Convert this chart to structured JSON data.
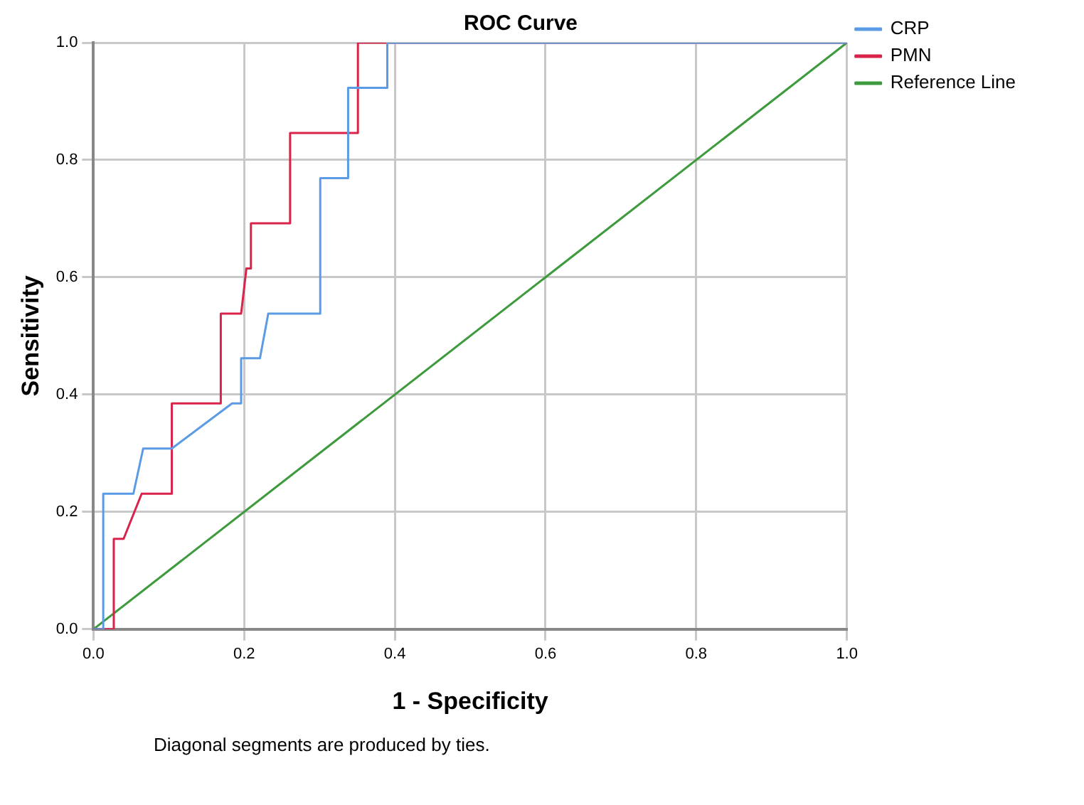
{
  "chart_data": {
    "type": "line",
    "title": "ROC Curve",
    "xlabel": "1 - Specificity",
    "ylabel": "Sensitivity",
    "annotations": [
      "Diagonal segments are produced by ties."
    ],
    "xlim": [
      0,
      1
    ],
    "ylim": [
      0,
      1
    ],
    "xticks": [
      {
        "value": 0,
        "label": "0.0"
      },
      {
        "value": 0.2,
        "label": "0.2"
      },
      {
        "value": 0.4,
        "label": "0.4"
      },
      {
        "value": 0.6,
        "label": "0.6"
      },
      {
        "value": 0.8,
        "label": "0.8"
      },
      {
        "value": 1,
        "label": "1.0"
      }
    ],
    "yticks": [
      {
        "value": 0,
        "label": "0.0"
      },
      {
        "value": 0.2,
        "label": "0.2"
      },
      {
        "value": 0.4,
        "label": "0.4"
      },
      {
        "value": 0.6,
        "label": "0.6"
      },
      {
        "value": 0.8,
        "label": "0.8"
      },
      {
        "value": 1,
        "label": "1.0"
      }
    ],
    "grid": true,
    "legend": "top right",
    "marker": "none",
    "line_style": "solid",
    "series": [
      {
        "name": "CRP",
        "color": "#5b9be6",
        "x": [
          0,
          0.013,
          0.013,
          0.053,
          0.066,
          0.104,
          0.184,
          0.196,
          0.196,
          0.221,
          0.232,
          0.301,
          0.301,
          0.338,
          0.338,
          0.39,
          0.39,
          1
        ],
        "values": [
          0,
          0,
          0.231,
          0.231,
          0.308,
          0.308,
          0.385,
          0.385,
          0.462,
          0.462,
          0.538,
          0.538,
          0.769,
          0.769,
          0.923,
          0.923,
          1,
          1
        ]
      },
      {
        "name": "PMN",
        "color": "#d9234b",
        "x": [
          0,
          0.027,
          0.027,
          0.04,
          0.064,
          0.104,
          0.104,
          0.169,
          0.169,
          0.196,
          0.203,
          0.209,
          0.209,
          0.261,
          0.261,
          0.351,
          0.351,
          1
        ],
        "values": [
          0,
          0,
          0.154,
          0.154,
          0.231,
          0.231,
          0.385,
          0.385,
          0.538,
          0.538,
          0.615,
          0.615,
          0.692,
          0.692,
          0.846,
          0.846,
          1,
          1
        ]
      },
      {
        "name": "Reference Line",
        "color": "#3d9a3d",
        "x": [
          0,
          1
        ],
        "values": [
          0,
          1
        ]
      }
    ]
  }
}
